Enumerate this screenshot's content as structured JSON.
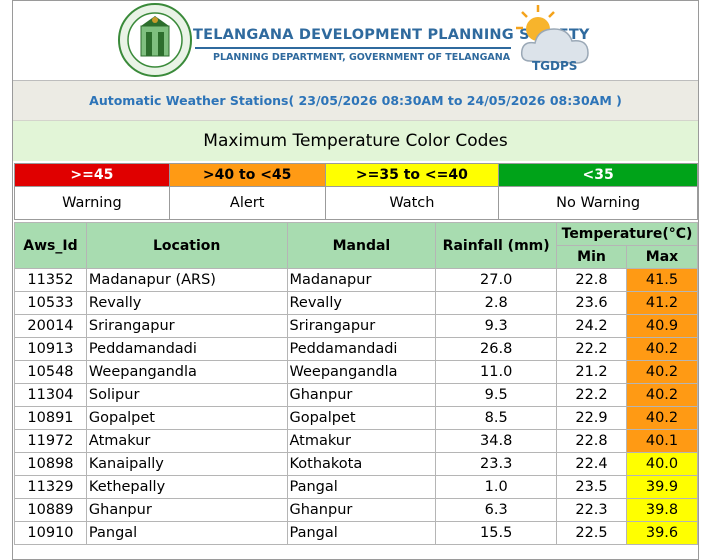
{
  "header": {
    "org_name": "TELANGANA DEVELOPMENT PLANNING SOCIETY",
    "org_subtitle": "PLANNING DEPARTMENT, GOVERNMENT OF TELANGANA",
    "seal_text": "GOVERNMENT OF TELANGANA",
    "logo_text": "TGDPS",
    "aws_title": "Automatic Weather Stations( 23/05/2026 08:30AM to 24/05/2026 08:30AM )"
  },
  "legend": {
    "title": "Maximum Temperature Color Codes",
    "ranges": [
      ">=45",
      ">40 to <45",
      ">=35 to <=40",
      "<35"
    ],
    "levels": [
      "Warning",
      "Alert",
      "Watch",
      "No Warning"
    ],
    "colors": [
      "#e00000",
      "#ff9a14",
      "#ffff00",
      "#00a319"
    ],
    "text_colors": [
      "#ffffff",
      "#000000",
      "#000000",
      "#ffffff"
    ]
  },
  "table": {
    "headers": {
      "aws_id": "Aws_Id",
      "location": "Location",
      "mandal": "Mandal",
      "rainfall": "Rainfall (mm)",
      "temperature": "Temperature(°C)",
      "min": "Min",
      "max": "Max"
    },
    "rows": [
      {
        "aws_id": "11352",
        "location": "Madanapur (ARS)",
        "mandal": "Madanapur",
        "rainfall": "27.0",
        "min": "22.8",
        "max": "41.5",
        "level": "alert"
      },
      {
        "aws_id": "10533",
        "location": "Revally",
        "mandal": "Revally",
        "rainfall": "2.8",
        "min": "23.6",
        "max": "41.2",
        "level": "alert"
      },
      {
        "aws_id": "20014",
        "location": "Srirangapur",
        "mandal": "Srirangapur",
        "rainfall": "9.3",
        "min": "24.2",
        "max": "40.9",
        "level": "alert"
      },
      {
        "aws_id": "10913",
        "location": "Peddamandadi",
        "mandal": "Peddamandadi",
        "rainfall": "26.8",
        "min": "22.2",
        "max": "40.2",
        "level": "alert"
      },
      {
        "aws_id": "10548",
        "location": "Weepangandla",
        "mandal": "Weepangandla",
        "rainfall": "11.0",
        "min": "21.2",
        "max": "40.2",
        "level": "alert"
      },
      {
        "aws_id": "11304",
        "location": "Solipur",
        "mandal": "Ghanpur",
        "rainfall": "9.5",
        "min": "22.2",
        "max": "40.2",
        "level": "alert"
      },
      {
        "aws_id": "10891",
        "location": "Gopalpet",
        "mandal": "Gopalpet",
        "rainfall": "8.5",
        "min": "22.9",
        "max": "40.2",
        "level": "alert"
      },
      {
        "aws_id": "11972",
        "location": "Atmakur",
        "mandal": "Atmakur",
        "rainfall": "34.8",
        "min": "22.8",
        "max": "40.1",
        "level": "alert"
      },
      {
        "aws_id": "10898",
        "location": "Kanaipally",
        "mandal": "Kothakota",
        "rainfall": "23.3",
        "min": "22.4",
        "max": "40.0",
        "level": "watch"
      },
      {
        "aws_id": "11329",
        "location": "Kethepally",
        "mandal": "Pangal",
        "rainfall": "1.0",
        "min": "23.5",
        "max": "39.9",
        "level": "watch"
      },
      {
        "aws_id": "10889",
        "location": "Ghanpur",
        "mandal": "Ghanpur",
        "rainfall": "6.3",
        "min": "22.3",
        "max": "39.8",
        "level": "watch"
      },
      {
        "aws_id": "10910",
        "location": "Pangal",
        "mandal": "Pangal",
        "rainfall": "15.5",
        "min": "22.5",
        "max": "39.6",
        "level": "watch"
      }
    ]
  }
}
